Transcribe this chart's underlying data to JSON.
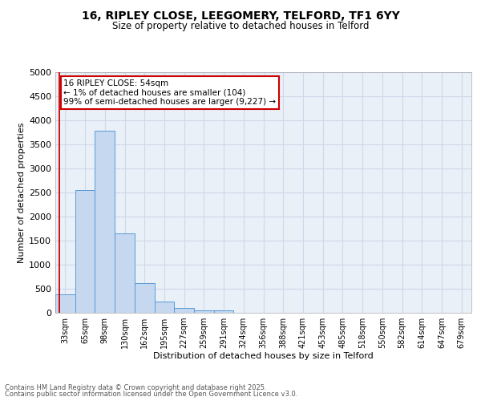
{
  "title_line1": "16, RIPLEY CLOSE, LEEGOMERY, TELFORD, TF1 6YY",
  "title_line2": "Size of property relative to detached houses in Telford",
  "xlabel": "Distribution of detached houses by size in Telford",
  "ylabel": "Number of detached properties",
  "categories": [
    "33sqm",
    "65sqm",
    "98sqm",
    "130sqm",
    "162sqm",
    "195sqm",
    "227sqm",
    "259sqm",
    "291sqm",
    "324sqm",
    "356sqm",
    "388sqm",
    "421sqm",
    "453sqm",
    "485sqm",
    "518sqm",
    "550sqm",
    "582sqm",
    "614sqm",
    "647sqm",
    "679sqm"
  ],
  "values": [
    390,
    2550,
    3780,
    1650,
    620,
    230,
    100,
    45,
    45,
    0,
    0,
    0,
    0,
    0,
    0,
    0,
    0,
    0,
    0,
    0,
    0
  ],
  "bar_color": "#c5d8f0",
  "bar_edge_color": "#5a9bd5",
  "grid_color": "#d0d8e8",
  "background_color": "#eaf0f8",
  "vline_color": "#cc0000",
  "annotation_text": "16 RIPLEY CLOSE: 54sqm\n← 1% of detached houses are smaller (104)\n99% of semi-detached houses are larger (9,227) →",
  "annotation_box_color": "#cc0000",
  "annotation_box_fill": "#ffffff",
  "ylim": [
    0,
    5000
  ],
  "yticks": [
    0,
    500,
    1000,
    1500,
    2000,
    2500,
    3000,
    3500,
    4000,
    4500,
    5000
  ],
  "footer_line1": "Contains HM Land Registry data © Crown copyright and database right 2025.",
  "footer_line2": "Contains public sector information licensed under the Open Government Licence v3.0."
}
